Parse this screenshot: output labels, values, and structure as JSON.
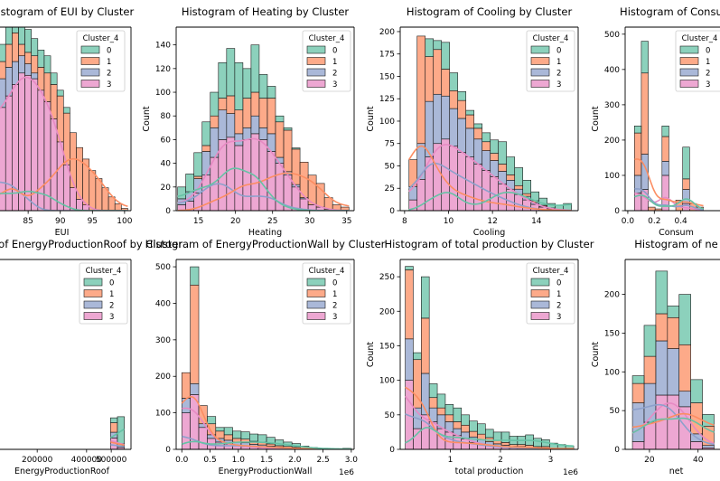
{
  "figure": {
    "legend_title": "Cluster_4",
    "legend_labels": [
      "0",
      "1",
      "2",
      "3"
    ]
  },
  "colors": {
    "0": "#66c2a5",
    "1": "#fc8d62",
    "2": "#8da0cb",
    "3": "#e78ac3"
  },
  "chart_data": [
    {
      "type": "histogram",
      "title": "Histogram of EUI by Cluster",
      "xlabel": "EUI",
      "ylabel": "",
      "xlim": [
        79.5,
        101
      ],
      "ylim": [
        0,
        160
      ],
      "xticks": [
        85,
        90,
        95,
        100
      ],
      "xtick_labels": [
        "85",
        "90",
        "95",
        "100"
      ],
      "yticks": [],
      "ytick_labels": [],
      "legend": "top-right",
      "bins_start": 79.5,
      "bin_width": 1.0,
      "series": [
        {
          "name": "3",
          "values": [
            80,
            90,
            100,
            110,
            120,
            118,
            115,
            105,
            95,
            80,
            60,
            40,
            20,
            10,
            5,
            0,
            0,
            0,
            0,
            0,
            0
          ]
        },
        {
          "name": "2",
          "values": [
            25,
            25,
            25,
            20,
            15,
            10,
            5,
            0,
            0,
            0,
            0,
            0,
            0,
            0,
            0,
            0,
            0,
            0,
            0,
            0,
            0
          ]
        },
        {
          "name": "1",
          "values": [
            10,
            15,
            20,
            25,
            10,
            10,
            15,
            20,
            25,
            30,
            40,
            45,
            48,
            45,
            40,
            35,
            28,
            20,
            12,
            6,
            2
          ]
        },
        {
          "name": "0",
          "values": [
            15,
            15,
            15,
            15,
            15,
            20,
            15,
            15,
            15,
            10,
            5,
            5,
            0,
            0,
            0,
            0,
            0,
            0,
            0,
            0,
            0
          ]
        }
      ],
      "kde_cluster": "1"
    },
    {
      "type": "histogram",
      "title": "Histogram of Heating by Cluster",
      "xlabel": "Heating",
      "ylabel": "Count",
      "xlim": [
        12,
        36
      ],
      "ylim": [
        0,
        155
      ],
      "xticks": [
        15,
        20,
        25,
        30,
        35
      ],
      "xtick_labels": [
        "15",
        "20",
        "25",
        "30",
        "35"
      ],
      "yticks": [
        0,
        20,
        40,
        60,
        80,
        100,
        120,
        140
      ],
      "ytick_labels": [
        "0",
        "20",
        "40",
        "60",
        "80",
        "100",
        "120",
        "140"
      ],
      "legend": "top-right",
      "bins_start": 12.2,
      "bin_width": 1.1,
      "series": [
        {
          "name": "3",
          "values": [
            5,
            8,
            15,
            30,
            45,
            60,
            62,
            55,
            60,
            65,
            60,
            50,
            40,
            30,
            20,
            10,
            5,
            3,
            1,
            0,
            0
          ]
        },
        {
          "name": "2",
          "values": [
            5,
            8,
            12,
            20,
            25,
            25,
            20,
            10,
            10,
            15,
            10,
            15,
            5,
            3,
            2,
            1,
            0,
            0,
            0,
            0,
            0
          ]
        },
        {
          "name": "1",
          "values": [
            0,
            0,
            2,
            5,
            10,
            10,
            15,
            20,
            25,
            20,
            25,
            30,
            30,
            35,
            30,
            30,
            25,
            20,
            10,
            5,
            3
          ]
        },
        {
          "name": "0",
          "values": [
            10,
            15,
            20,
            20,
            20,
            30,
            40,
            40,
            25,
            40,
            20,
            10,
            5,
            2,
            1,
            0,
            0,
            0,
            0,
            0,
            0
          ]
        }
      ],
      "kde_cluster": "0"
    },
    {
      "type": "histogram",
      "title": "Histogram of Cooling by Cluster",
      "xlabel": "Cooling",
      "ylabel": "Count",
      "xlim": [
        7.8,
        15.9
      ],
      "ylim": [
        0,
        205
      ],
      "xticks": [
        8,
        10,
        12,
        14
      ],
      "xtick_labels": [
        "8",
        "10",
        "12",
        "14"
      ],
      "yticks": [
        0,
        25,
        50,
        75,
        100,
        125,
        150,
        175,
        200
      ],
      "ytick_labels": [
        "0",
        "25",
        "50",
        "75",
        "100",
        "125",
        "150",
        "175",
        "200"
      ],
      "legend": "top-right",
      "bins_start": 8.2,
      "bin_width": 0.37,
      "series": [
        {
          "name": "3",
          "values": [
            12,
            35,
            60,
            75,
            80,
            72,
            65,
            60,
            52,
            45,
            38,
            30,
            24,
            18,
            12,
            7,
            4,
            2,
            1,
            0
          ]
        },
        {
          "name": "2",
          "values": [
            15,
            40,
            62,
            55,
            48,
            42,
            38,
            32,
            28,
            22,
            18,
            14,
            10,
            6,
            4,
            2,
            1,
            0,
            0,
            0
          ]
        },
        {
          "name": "1",
          "values": [
            30,
            120,
            50,
            50,
            30,
            20,
            20,
            15,
            12,
            10,
            8,
            8,
            6,
            4,
            3,
            2,
            1,
            1,
            0,
            0
          ]
        },
        {
          "name": "0",
          "values": [
            0,
            0,
            20,
            10,
            30,
            20,
            10,
            5,
            5,
            10,
            15,
            25,
            20,
            20,
            15,
            10,
            8,
            5,
            5,
            8
          ]
        }
      ],
      "kde_cluster": "0"
    },
    {
      "type": "histogram",
      "title": "Histogram of Consum",
      "xlabel": "Consum",
      "ylabel": "Count",
      "xlim": [
        -0.02,
        0.75
      ],
      "ylim": [
        0,
        520
      ],
      "xticks": [
        0.0,
        0.2,
        0.4
      ],
      "xtick_labels": [
        "0.0",
        "0.2",
        "0.4"
      ],
      "yticks": [
        0,
        100,
        200,
        300,
        400,
        500
      ],
      "ytick_labels": [
        "0",
        "100",
        "200",
        "300",
        "400",
        "500"
      ],
      "legend": "top-right",
      "bins_start": 0.05,
      "bin_width": 0.052,
      "series": [
        {
          "name": "3",
          "values": [
            50,
            60,
            0,
            0,
            100,
            0,
            0,
            20,
            0,
            0
          ]
        },
        {
          "name": "2",
          "values": [
            50,
            100,
            0,
            0,
            40,
            0,
            0,
            40,
            0,
            0
          ]
        },
        {
          "name": "1",
          "values": [
            120,
            230,
            10,
            5,
            70,
            0,
            30,
            30,
            20,
            10
          ]
        },
        {
          "name": "0",
          "values": [
            20,
            90,
            0,
            0,
            30,
            0,
            0,
            90,
            0,
            0
          ]
        }
      ],
      "kde_cluster": "0"
    },
    {
      "type": "histogram",
      "title": "Histogram of EnergyProductionRoof by Cluster",
      "xlabel": "EnergyProductionRoof",
      "ylabel": "",
      "xlim": [
        20000,
        580000
      ],
      "ylim": [
        0,
        500
      ],
      "xticks": [
        200000,
        400000,
        500000
      ],
      "xtick_labels": [
        "200000",
        "400000",
        "500000"
      ],
      "yticks": [],
      "ytick_labels": [],
      "legend": "top-right",
      "bins_start": 497000,
      "bin_width": 28000,
      "series": [
        {
          "name": "3",
          "values": [
            30,
            5
          ]
        },
        {
          "name": "2",
          "values": [
            15,
            5
          ]
        },
        {
          "name": "1",
          "values": [
            25,
            5
          ]
        },
        {
          "name": "0",
          "values": [
            13,
            71
          ]
        }
      ],
      "kde_cluster": "0"
    },
    {
      "type": "histogram",
      "title": "Histogram of EnergyProductionWall by Cluster",
      "xlabel": "EnergyProductionWall",
      "ylabel": "",
      "offset_label": "1e6",
      "xlim": [
        -0.1,
        3.05
      ],
      "ylim": [
        0,
        520
      ],
      "xticks": [
        0.0,
        0.5,
        1.0,
        1.5,
        2.0,
        2.5,
        3.0
      ],
      "xtick_labels": [
        "0.0",
        "0.5",
        "1.0",
        "1.5",
        "2.0",
        "2.5",
        "3.0"
      ],
      "yticks": [
        0,
        100,
        200,
        300,
        400,
        500
      ],
      "ytick_labels": [
        "0",
        "100",
        "200",
        "300",
        "400",
        "500"
      ],
      "legend": "top-right",
      "bins_start": 0.0,
      "bin_width": 0.15,
      "series": [
        {
          "name": "3",
          "values": [
            100,
            150,
            60,
            30,
            20,
            15,
            10,
            8,
            6,
            4,
            3,
            2,
            1,
            1,
            0,
            0,
            0,
            0,
            0,
            1
          ]
        },
        {
          "name": "2",
          "values": [
            40,
            30,
            10,
            10,
            10,
            10,
            10,
            10,
            8,
            8,
            6,
            4,
            3,
            2,
            1,
            0,
            0,
            0,
            0,
            0
          ]
        },
        {
          "name": "1",
          "values": [
            70,
            270,
            50,
            30,
            20,
            15,
            10,
            10,
            8,
            8,
            6,
            4,
            4,
            3,
            2,
            1,
            1,
            0,
            0,
            1
          ]
        },
        {
          "name": "0",
          "values": [
            0,
            50,
            0,
            20,
            10,
            20,
            20,
            20,
            20,
            20,
            18,
            16,
            12,
            10,
            6,
            4,
            2,
            2,
            1,
            1
          ]
        }
      ],
      "kde_cluster": "0"
    },
    {
      "type": "histogram",
      "title": "Histogram of total production by Cluster",
      "xlabel": "total production",
      "ylabel": "Count",
      "offset_label": "1e6",
      "xlim": [
        0.0,
        3.55
      ],
      "ylim": [
        0,
        275
      ],
      "xticks": [
        1,
        2,
        3
      ],
      "xtick_labels": [
        "1",
        "2",
        "3"
      ],
      "yticks": [
        0,
        50,
        100,
        150,
        200,
        250
      ],
      "ytick_labels": [
        "0",
        "50",
        "100",
        "150",
        "200",
        "250"
      ],
      "legend": "top-right",
      "bins_start": 0.1,
      "bin_width": 0.16,
      "series": [
        {
          "name": "3",
          "values": [
            100,
            30,
            50,
            40,
            30,
            25,
            20,
            15,
            10,
            8,
            6,
            4,
            3,
            2,
            2,
            1,
            1,
            1,
            0,
            0,
            0
          ]
        },
        {
          "name": "2",
          "values": [
            60,
            30,
            60,
            20,
            20,
            15,
            10,
            10,
            8,
            6,
            5,
            4,
            3,
            2,
            2,
            2,
            1,
            1,
            0,
            0,
            0
          ]
        },
        {
          "name": "1",
          "values": [
            100,
            70,
            80,
            15,
            10,
            10,
            10,
            10,
            8,
            8,
            6,
            5,
            4,
            3,
            3,
            3,
            2,
            2,
            1,
            1,
            1
          ]
        },
        {
          "name": "0",
          "values": [
            5,
            10,
            60,
            20,
            20,
            15,
            20,
            15,
            15,
            15,
            12,
            12,
            15,
            12,
            12,
            15,
            12,
            10,
            8,
            6,
            4
          ]
        }
      ],
      "kde_cluster": "0"
    },
    {
      "type": "histogram",
      "title": "Histogram of ne",
      "xlabel": "net",
      "ylabel": "Count",
      "xlim": [
        10,
        52
      ],
      "ylim": [
        0,
        245
      ],
      "xticks": [
        20,
        40
      ],
      "xtick_labels": [
        "20",
        "40"
      ],
      "yticks": [
        0,
        50,
        100,
        150,
        200
      ],
      "ytick_labels": [
        "0",
        "50",
        "100",
        "150",
        "200"
      ],
      "legend": "",
      "bins_start": 13,
      "bin_width": 4.8,
      "series": [
        {
          "name": "3",
          "values": [
            10,
            35,
            70,
            70,
            55,
            10,
            2
          ]
        },
        {
          "name": "2",
          "values": [
            50,
            50,
            70,
            60,
            20,
            10,
            3
          ]
        },
        {
          "name": "1",
          "values": [
            25,
            35,
            35,
            40,
            60,
            40,
            25
          ]
        },
        {
          "name": "0",
          "values": [
            10,
            40,
            55,
            15,
            65,
            30,
            15
          ]
        }
      ],
      "kde_cluster": "1"
    }
  ]
}
